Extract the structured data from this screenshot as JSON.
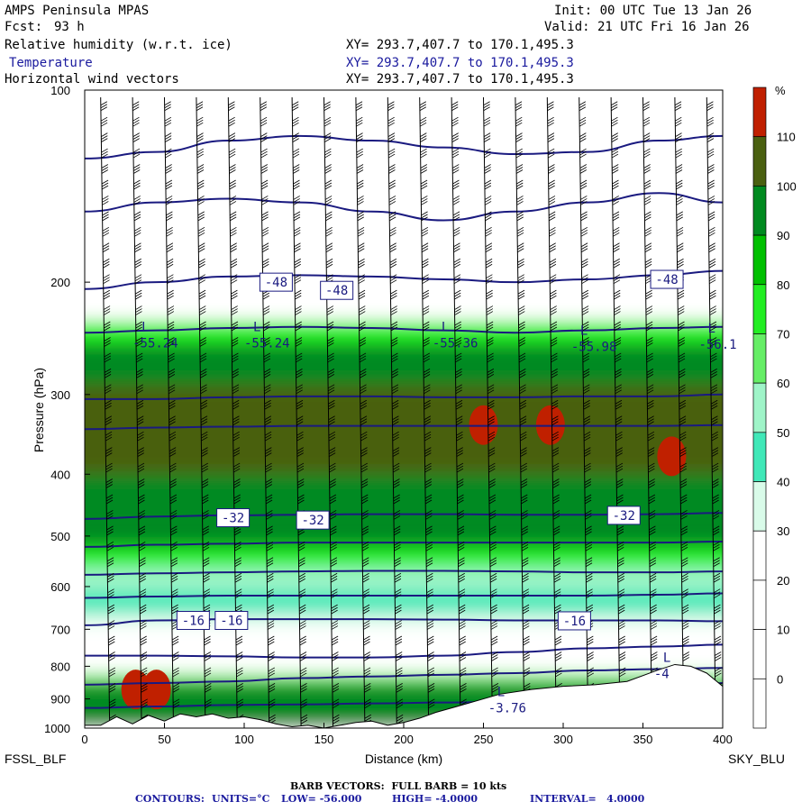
{
  "header": {
    "title": "AMPS Peninsula MPAS",
    "fcst_label": "Fcst:",
    "fcst_value": "93 h",
    "init": "Init: 00 UTC Tue 13 Jan 26",
    "valid": "Valid: 21 UTC Fri 16 Jan 26",
    "field_lines": [
      {
        "name": "Relative humidity (w.r.t. ice)",
        "xy": "XY= 293.7,407.7 to 170.1,495.3"
      },
      {
        "name": "Temperature",
        "xy": "XY= 293.7,407.7 to 170.1,495.3"
      },
      {
        "name": "Horizontal wind vectors",
        "xy": "XY= 293.7,407.7 to 170.1,495.3"
      }
    ]
  },
  "colors": {
    "contour_line": "#1a1a80",
    "ground": "#ffffff",
    "barb": "#000000",
    "rh_bins": [
      "#ffffff",
      "#ffffff",
      "#ffffff",
      "#ffffff",
      "#d9fbe9",
      "#40e8b8",
      "#9ff4c8",
      "#66ee66",
      "#22ee22",
      "#00c000",
      "#008a20",
      "#4a6010",
      "#c02000"
    ]
  },
  "chart_data": {
    "type": "heatmap",
    "title": "Relative humidity (w.r.t. ice), Temperature, Horizontal wind vectors",
    "xlabel": "Distance (km)",
    "ylabel": "Pressure (hPa)",
    "xlim": [
      0,
      400
    ],
    "ylim": [
      1000,
      100
    ],
    "y_scale": "log",
    "x_ticks": [
      0,
      50,
      100,
      150,
      200,
      250,
      300,
      350,
      400
    ],
    "y_ticks": [
      100,
      200,
      300,
      400,
      500,
      600,
      700,
      800,
      900,
      1000
    ],
    "left_endpoint_label": "FSSL_BLF",
    "right_endpoint_label": "SKY_BLU",
    "colorbar": {
      "unit": "%",
      "levels": [
        0,
        10,
        20,
        30,
        40,
        50,
        60,
        70,
        80,
        90,
        100,
        110
      ],
      "ticks": [
        "110",
        "100",
        "90",
        "80",
        "70",
        "60",
        "50",
        "40",
        "30",
        "20",
        "10",
        "0"
      ]
    },
    "rh_layers": [
      {
        "p_top": 100,
        "p_bot": 230,
        "rh": 10
      },
      {
        "p_top": 230,
        "p_bot": 250,
        "rh": 75
      },
      {
        "p_top": 250,
        "p_bot": 290,
        "rh": 95
      },
      {
        "p_top": 290,
        "p_bot": 400,
        "rh": 102
      },
      {
        "p_top": 400,
        "p_bot": 470,
        "rh": 92
      },
      {
        "p_top": 470,
        "p_bot": 520,
        "rh": 98
      },
      {
        "p_top": 520,
        "p_bot": 560,
        "rh": 75
      },
      {
        "p_top": 560,
        "p_bot": 610,
        "rh": 55
      },
      {
        "p_top": 610,
        "p_bot": 660,
        "rh": 45
      },
      {
        "p_top": 660,
        "p_bot": 690,
        "rh": 35
      },
      {
        "p_top": 690,
        "p_bot": 820,
        "rh": 15
      },
      {
        "p_top": 820,
        "p_bot": 850,
        "rh": 60
      },
      {
        "p_top": 850,
        "p_bot": 1000,
        "rh": 95
      }
    ],
    "rh_maxima": [
      {
        "x": 250,
        "p": 335,
        "rh": 115
      },
      {
        "x": 292,
        "p": 335,
        "rh": 115
      },
      {
        "x": 368,
        "p": 375,
        "rh": 115
      },
      {
        "x": 32,
        "p": 870,
        "rh": 112
      },
      {
        "x": 45,
        "p": 870,
        "rh": 112
      }
    ],
    "terrain": {
      "x": [
        0,
        10,
        20,
        30,
        40,
        50,
        60,
        70,
        80,
        90,
        100,
        110,
        120,
        130,
        140,
        150,
        160,
        170,
        180,
        190,
        200,
        210,
        220,
        240,
        260,
        280,
        300,
        320,
        340,
        360,
        370,
        380,
        390,
        400
      ],
      "p": [
        990,
        990,
        960,
        985,
        955,
        975,
        950,
        960,
        950,
        965,
        960,
        970,
        985,
        995,
        990,
        1000,
        990,
        980,
        975,
        990,
        980,
        965,
        945,
        915,
        885,
        870,
        860,
        855,
        845,
        810,
        795,
        800,
        820,
        860
      ]
    },
    "temperature_contours": {
      "units": "°C",
      "low": -56.0,
      "high": -4.0,
      "interval": 4.0,
      "lines": [
        {
          "t": -56,
          "p": [
            128,
            125,
            120,
            118,
            120,
            123,
            126,
            125,
            120,
            118
          ]
        },
        {
          "t": -52,
          "p": [
            155,
            150,
            148,
            150,
            155,
            160,
            155,
            150,
            145,
            150
          ]
        },
        {
          "t": -48,
          "p": [
            205,
            200,
            196,
            195,
            196,
            198,
            200,
            198,
            195,
            192
          ]
        },
        {
          "t": -44,
          "p": [
            240,
            238,
            236,
            235,
            236,
            238,
            240,
            238,
            236,
            235
          ]
        },
        {
          "t": -40,
          "p": [
            305,
            305,
            303,
            302,
            302,
            303,
            303,
            302,
            302,
            300
          ]
        },
        {
          "t": -36,
          "p": [
            340,
            338,
            337,
            336,
            336,
            336,
            336,
            336,
            336,
            335
          ]
        },
        {
          "t": -32,
          "p": [
            470,
            466,
            464,
            463,
            462,
            462,
            463,
            463,
            462,
            460
          ]
        },
        {
          "t": -28,
          "p": [
            520,
            516,
            514,
            512,
            512,
            512,
            512,
            512,
            512,
            510
          ]
        },
        {
          "t": -24,
          "p": [
            575,
            572,
            570,
            568,
            567,
            567,
            568,
            570,
            570,
            568
          ]
        },
        {
          "t": -20,
          "p": [
            625,
            622,
            620,
            620,
            620,
            620,
            620,
            620,
            618,
            615
          ]
        },
        {
          "t": -16,
          "p": [
            690,
            678,
            675,
            675,
            675,
            676,
            678,
            678,
            678,
            680
          ]
        },
        {
          "t": -12,
          "p": [
            770,
            770,
            772,
            775,
            775,
            770,
            760,
            750,
            745,
            740
          ]
        },
        {
          "t": -8,
          "p": [
            855,
            850,
            845,
            835,
            830,
            825,
            820,
            812,
            808,
            805
          ]
        },
        {
          "t": -4,
          "p": [
            930,
            925,
            920,
            918,
            915,
            912,
            908,
            880,
            860,
            850
          ]
        }
      ],
      "x": [
        0,
        45,
        90,
        135,
        180,
        225,
        270,
        315,
        360,
        400
      ],
      "labels": [
        {
          "text": "-48",
          "x": 120,
          "p": 200
        },
        {
          "text": "-48",
          "x": 158,
          "p": 206
        },
        {
          "text": "-48",
          "x": 365,
          "p": 198
        },
        {
          "text": "-32",
          "x": 93,
          "p": 468
        },
        {
          "text": "-32",
          "x": 143,
          "p": 472
        },
        {
          "text": "-32",
          "x": 338,
          "p": 464
        },
        {
          "text": "-16",
          "x": 68,
          "p": 678
        },
        {
          "text": "-16",
          "x": 92,
          "p": 678
        },
        {
          "text": "-16",
          "x": 307,
          "p": 679
        }
      ],
      "minima": [
        {
          "letter": "L",
          "value": "-55.24",
          "x": 30,
          "p": 245
        },
        {
          "letter": "L",
          "value": "-55.24",
          "x": 100,
          "p": 245
        },
        {
          "letter": "L",
          "value": "-55.36",
          "x": 218,
          "p": 245
        },
        {
          "letter": "L",
          "value": "-55.98",
          "x": 305,
          "p": 248
        },
        {
          "letter": "L",
          "value": "-56.1",
          "x": 385,
          "p": 246
        },
        {
          "letter": "L",
          "value": "-4",
          "x": 357,
          "p": 808
        },
        {
          "letter": "L",
          "value": "-3.76",
          "x": 253,
          "p": 915
        }
      ]
    },
    "wind_barbs": {
      "full_barb_kts": 10,
      "columns_x": [
        10,
        30,
        50,
        70,
        90,
        110,
        130,
        150,
        170,
        190,
        210,
        230,
        250,
        270,
        290,
        310,
        330,
        350,
        370,
        390
      ],
      "typical_speed_kts": 30,
      "direction_deg": 190
    },
    "footer": {
      "barb_line": "BARB VECTORS:  FULL BARB = 10 kts",
      "contours_label": "CONTOURS:",
      "units_label": "UNITS=°C",
      "low_label": "LOW= -56.000",
      "high_label": "HIGH= -4.0000",
      "interval_label": "INTERVAL=   4.0000"
    }
  }
}
